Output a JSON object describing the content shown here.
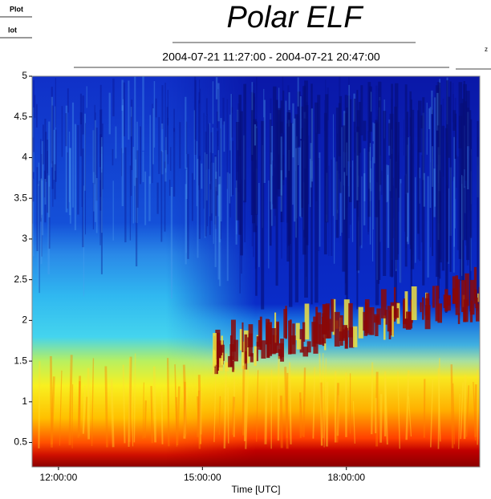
{
  "header": {
    "menu_1": "Plot",
    "menu_2": "lot",
    "right_label": "z"
  },
  "chart_data": {
    "type": "spectrogram",
    "title": "Polar ELF",
    "subtitle": "2004-07-21 11:27:00  -  2004-07-21 20:47:00",
    "x_label": "Time [UTC]",
    "xlim": [
      11.45,
      20.78
    ],
    "xticks": [
      {
        "value": 12,
        "label": "12:00:00"
      },
      {
        "value": 15,
        "label": "15:00:00"
      },
      {
        "value": 18,
        "label": "18:00:00"
      }
    ],
    "ylim": [
      0.2,
      5
    ],
    "yticks": [
      0.5,
      1,
      1.5,
      2,
      2.5,
      3,
      3.5,
      4,
      4.5,
      5
    ],
    "title_color": "#1a8c84"
  }
}
